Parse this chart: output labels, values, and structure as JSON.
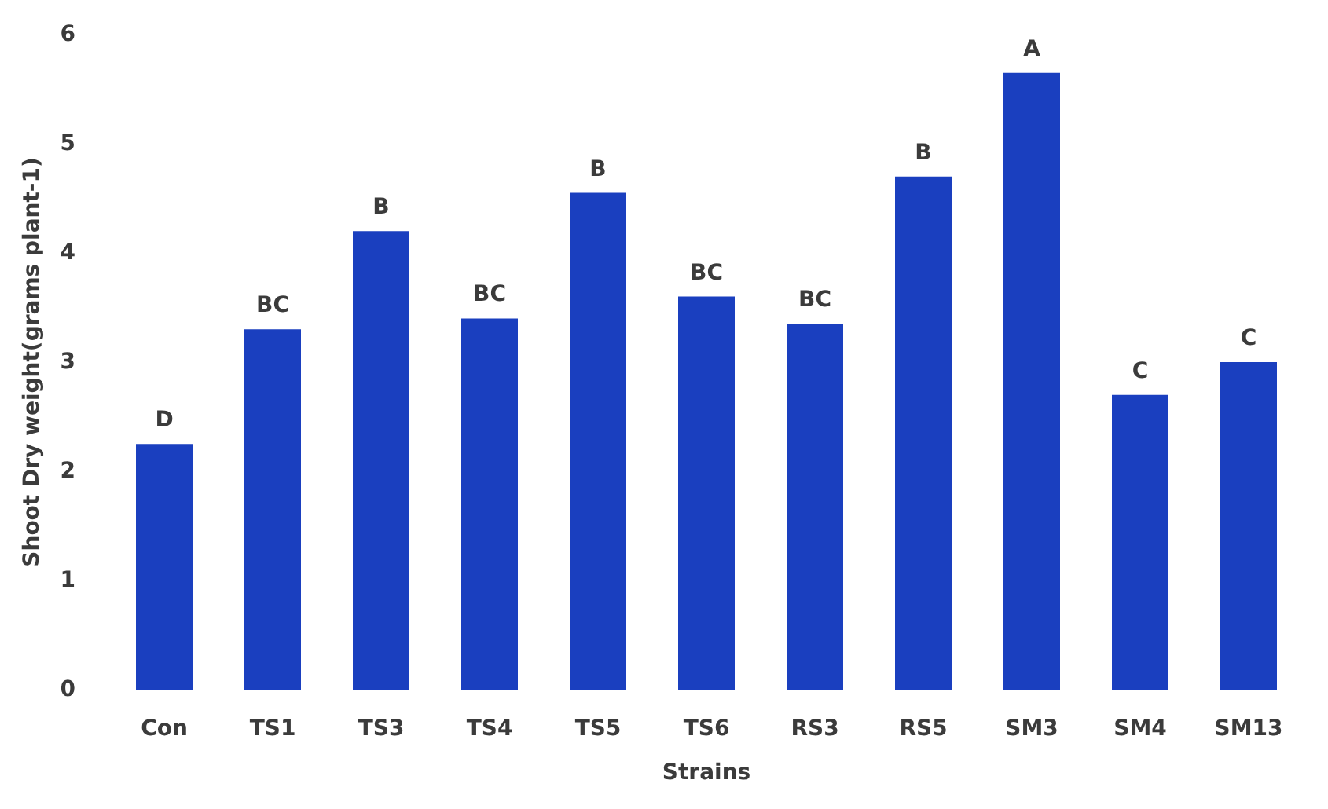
{
  "chart_data": {
    "type": "bar",
    "xlabel": "Strains",
    "ylabel": "Shoot Dry weight(grams plant-1)",
    "categories": [
      "Con",
      "TS1",
      "TS3",
      "TS4",
      "TS5",
      "TS6",
      "RS3",
      "RS5",
      "SM3",
      "SM4",
      "SM13"
    ],
    "values": [
      2.25,
      3.3,
      4.2,
      3.4,
      4.55,
      3.6,
      3.35,
      4.7,
      5.65,
      2.7,
      3.0
    ],
    "value_labels": [
      "D",
      "BC",
      "B",
      "BC",
      "B",
      "BC",
      "BC",
      "B",
      "A",
      "C",
      "C"
    ],
    "color": "#1a3fbf",
    "ylim": [
      0,
      6
    ],
    "yticks": [
      0,
      1,
      2,
      3,
      4,
      5,
      6
    ]
  }
}
